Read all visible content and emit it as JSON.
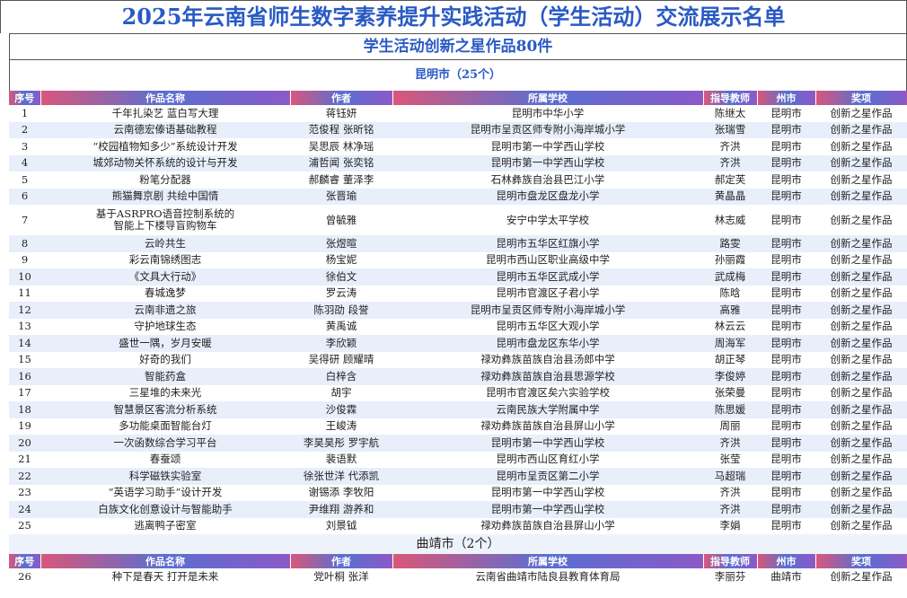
{
  "header": {
    "title": "2025年云南省师生数字素养提升实践活动（学生活动）交流展示名单",
    "subtitle": "学生活动创新之星作品80件"
  },
  "sections": [
    {
      "name": "昆明市（25个）",
      "columns": [
        "序号",
        "作品名称",
        "作者",
        "所属学校",
        "指导教师",
        "州市",
        "奖项"
      ],
      "rows": [
        [
          "1",
          "千年扎染艺 蓝白写大理",
          "蒋钰妍",
          "昆明市中华小学",
          "陈继太",
          "昆明市",
          "创新之星作品"
        ],
        [
          "2",
          "云南德宏傣语基础教程",
          "范俊程 张昕铭",
          "昆明市呈贡区师专附小海岸城小学",
          "张瑞雪",
          "昆明市",
          "创新之星作品"
        ],
        [
          "3",
          "“校园植物知多少”系统设计开发",
          "吴思辰 林净瑶",
          "昆明市第一中学西山学校",
          "齐洪",
          "昆明市",
          "创新之星作品"
        ],
        [
          "4",
          "城郊动物关怀系统的设计与开发",
          "浦哲闻 张奕铭",
          "昆明市第一中学西山学校",
          "齐洪",
          "昆明市",
          "创新之星作品"
        ],
        [
          "5",
          "粉笔分配器",
          "郝麟睿 董泽李",
          "石林彝族自治县巴江小学",
          "郝定芙",
          "昆明市",
          "创新之星作品"
        ],
        [
          "6",
          "熊猫舞京剧 共绘中国情",
          "张晋瑜",
          "昆明市盘龙区盘龙小学",
          "黄晶晶",
          "昆明市",
          "创新之星作品"
        ],
        [
          "7",
          "基于ASRPRO语音控制系统的\n智能上下楼导盲购物车",
          "曾毓雅",
          "安宁中学太平学校",
          "林志威",
          "昆明市",
          "创新之星作品"
        ],
        [
          "8",
          "云岭共生",
          "张煜暄",
          "昆明市五华区红旗小学",
          "路雯",
          "昆明市",
          "创新之星作品"
        ],
        [
          "9",
          "彩云南锦绣图志",
          "杨宝妮",
          "昆明市西山区职业高级中学",
          "孙丽霞",
          "昆明市",
          "创新之星作品"
        ],
        [
          "10",
          "《文具大行动》",
          "徐伯文",
          "昆明市五华区武成小学",
          "武成梅",
          "昆明市",
          "创新之星作品"
        ],
        [
          "11",
          "春城逸梦",
          "罗云涛",
          "昆明市官渡区子君小学",
          "陈晗",
          "昆明市",
          "创新之星作品"
        ],
        [
          "12",
          "云南非遗之旅",
          "陈羽劭 段誉",
          "昆明市呈贡区师专附小海岸城小学",
          "高雅",
          "昆明市",
          "创新之星作品"
        ],
        [
          "13",
          "守护地球生态",
          "黄禹诚",
          "昆明市五华区大观小学",
          "林云云",
          "昆明市",
          "创新之星作品"
        ],
        [
          "14",
          "盛世一隅，岁月安暖",
          "李欣颖",
          "昆明市盘龙区东华小学",
          "周海军",
          "昆明市",
          "创新之星作品"
        ],
        [
          "15",
          "好奇的我们",
          "吴得研 顾耀晴",
          "禄劝彝族苗族自治县汤郎中学",
          "胡正琴",
          "昆明市",
          "创新之星作品"
        ],
        [
          "16",
          "智能药盒",
          "白梓含",
          "禄劝彝族苗族自治县思源学校",
          "李俊婷",
          "昆明市",
          "创新之星作品"
        ],
        [
          "17",
          "三星堆的未来光",
          "胡宇",
          "昆明市官渡区矣六实验学校",
          "张荣曼",
          "昆明市",
          "创新之星作品"
        ],
        [
          "18",
          "智慧景区客流分析系统",
          "沙俊霖",
          "云南民族大学附属中学",
          "陈思媛",
          "昆明市",
          "创新之星作品"
        ],
        [
          "19",
          "多功能桌面智能台灯",
          "王峻涛",
          "禄劝彝族苗族自治县屏山小学",
          "周丽",
          "昆明市",
          "创新之星作品"
        ],
        [
          "20",
          "一次函数综合学习平台",
          "李昊昊彤 罗宇航",
          "昆明市第一中学西山学校",
          "齐洪",
          "昆明市",
          "创新之星作品"
        ],
        [
          "21",
          "春蚕颂",
          "裴语默",
          "昆明市西山区育红小学",
          "张莹",
          "昆明市",
          "创新之星作品"
        ],
        [
          "22",
          "科学磁铁实验室",
          "徐张世洋 代添凯",
          "昆明市呈贡区第二小学",
          "马超瑞",
          "昆明市",
          "创新之星作品"
        ],
        [
          "23",
          "“英语学习助手”设计开发",
          "谢锡添 李牧阳",
          "昆明市第一中学西山学校",
          "齐洪",
          "昆明市",
          "创新之星作品"
        ],
        [
          "24",
          "白族文化创意设计与智能助手",
          "尹维翔 游养和",
          "昆明市第一中学西山学校",
          "齐洪",
          "昆明市",
          "创新之星作品"
        ],
        [
          "25",
          "逃离鸭子密室",
          "刘景钺",
          "禄劝彝族苗族自治县屏山小学",
          "李娟",
          "昆明市",
          "创新之星作品"
        ]
      ]
    },
    {
      "name": "曲靖市（2个）",
      "columns": [
        "序号",
        "作品名称",
        "作者",
        "所属学校",
        "指导教师",
        "州市",
        "奖项"
      ],
      "rows": [
        [
          "26",
          "种下是春天 打开是未来",
          "党叶桐 张洋",
          "云南省曲靖市陆良县教育体育局",
          "李丽芬",
          "曲靖市",
          "创新之星作品"
        ]
      ]
    }
  ]
}
